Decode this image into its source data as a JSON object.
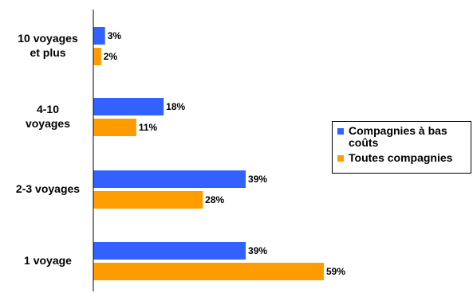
{
  "chart_data": {
    "type": "bar",
    "orientation": "horizontal",
    "categories": [
      [
        "10 voyages",
        "et plus"
      ],
      [
        "4-10",
        "voyages"
      ],
      [
        "2-3 voyages"
      ],
      [
        "1 voyage"
      ]
    ],
    "series": [
      {
        "name": "Compagnies à bas coûts",
        "color": "#3361ff",
        "values": [
          3,
          18,
          39,
          39
        ],
        "labels": [
          "3%",
          "18%",
          "39%",
          "39%"
        ]
      },
      {
        "name": "Toutes compagnies",
        "color": "#ff9c00",
        "values": [
          2,
          11,
          28,
          59
        ],
        "labels": [
          "2%",
          "11%",
          "28%",
          "59%"
        ]
      }
    ],
    "xlim": [
      0,
      61
    ],
    "grid": false,
    "legend_position": "right"
  },
  "legend": {
    "items": [
      {
        "name": "Compagnies à bas coûts",
        "color": "#3361ff"
      },
      {
        "name": "Toutes compagnies",
        "color": "#ff9c00"
      }
    ]
  }
}
